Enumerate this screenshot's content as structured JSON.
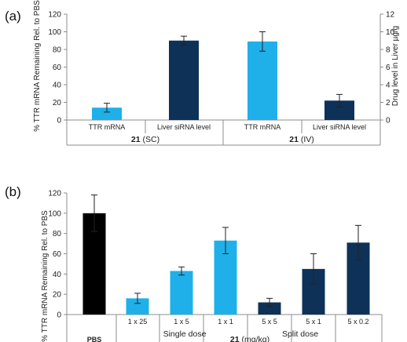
{
  "chart_data": [
    {
      "type": "bar",
      "panel_label": "(a)",
      "categories": [
        "TTR mRNA",
        "Liver siRNA level",
        "TTR mRNA",
        "Liver siRNA level"
      ],
      "values": [
        14,
        90,
        89,
        22
      ],
      "errors": [
        5,
        5,
        11,
        7
      ],
      "bar_colors": [
        "#1fb0ea",
        "#0e3158",
        "#1fb0ea",
        "#0e3158"
      ],
      "ylabel": "% TTR mRNA Remaining Rel. to PBS",
      "ylim": [
        0,
        120
      ],
      "yticks": [
        "0",
        "20",
        "40",
        "60",
        "80",
        "100",
        "120"
      ],
      "y2label": "Drug level in Liver µg/g",
      "y2lim": [
        0,
        12
      ],
      "y2ticks": [
        "0",
        "2",
        "4",
        "6",
        "8",
        "10",
        "12"
      ],
      "groups": [
        {
          "compound": "21",
          "route": "(SC)"
        },
        {
          "compound": "21",
          "route": "(IV)"
        }
      ],
      "grid": false
    },
    {
      "type": "bar",
      "panel_label": "(b)",
      "categories": [
        "PBS",
        "1 x 25",
        "1 x 5",
        "1 x 1",
        "5 x 5",
        "5 x 1",
        "5 x 0.2"
      ],
      "values": [
        100,
        16,
        43,
        73,
        12,
        45,
        71
      ],
      "errors": [
        18,
        5,
        4,
        13,
        4,
        15,
        17
      ],
      "bar_colors": [
        "#000000",
        "#1fb0ea",
        "#1fb0ea",
        "#1fb0ea",
        "#0e3158",
        "#0e3158",
        "#0e3158"
      ],
      "ylabel": "% TTR mRNA Remaining Rel. to PBS",
      "ylim": [
        0,
        120
      ],
      "groups": [
        {
          "label": "Single dose"
        },
        {
          "label": "Split dose"
        }
      ],
      "xlabel_compound": "21",
      "xlabel_unit": "(mg/kg)",
      "grid": false
    }
  ]
}
